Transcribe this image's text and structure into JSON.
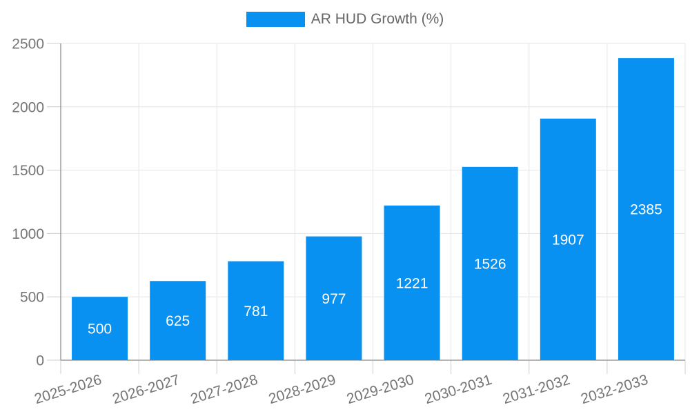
{
  "legend": {
    "label": "AR HUD Growth (%)"
  },
  "chart_data": {
    "type": "bar",
    "title": "AR HUD Growth (%)",
    "categories": [
      "2025-2026",
      "2026-2027",
      "2027-2028",
      "2028-2029",
      "2029-2030",
      "2030-2031",
      "2031-2032",
      "2032-2033"
    ],
    "series": [
      {
        "name": "AR HUD Growth (%)",
        "values": [
          500,
          625,
          781,
          977,
          1221,
          1526,
          1907,
          2385
        ]
      }
    ],
    "values": [
      500,
      625,
      781,
      977,
      1221,
      1526,
      1907,
      2385
    ],
    "value_labels_shown": true,
    "xlabel": "",
    "ylabel": "",
    "ylim": [
      0,
      2500
    ],
    "yticks": [
      0,
      500,
      1000,
      1500,
      2000,
      2500
    ],
    "grid": true,
    "legend_position": "top",
    "x_label_rotation": -17,
    "colors": {
      "bar": "#0991f1",
      "grid": "#e4e4e4",
      "axis": "#9e9e9e",
      "tick": "#cccccc",
      "tick_label": "#757575",
      "legend_text": "#666666",
      "value_label": "#ffffff",
      "background": "#ffffff"
    }
  }
}
